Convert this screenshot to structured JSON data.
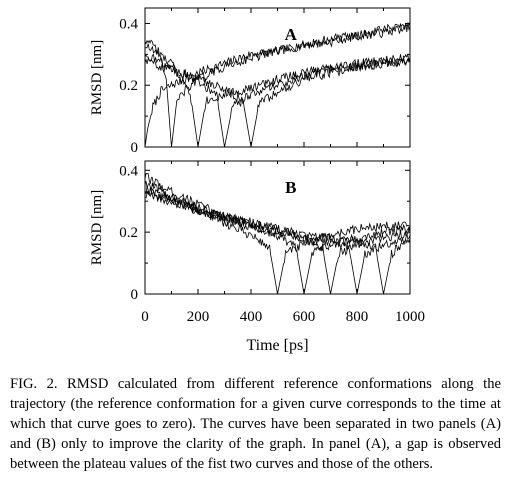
{
  "caption": "FIG. 2. RMSD calculated from different reference conformations along the trajectory (the reference conformation for a given curve corresponds to the time at which that curve goes to zero). The curves have been separated in two panels (A) and (B) only to improve the clarity of the graph. In panel (A), a gap is observed between the plateau values of the fist two curves and those of the others.",
  "chart_data": [
    {
      "type": "line",
      "panel_label": "A",
      "xlabel": "",
      "ylabel": "RMSD [nm]",
      "xlim": [
        0,
        1000
      ],
      "ylim": [
        0,
        0.45
      ],
      "yticks": [
        "0",
        "0.2",
        "0.4"
      ],
      "xticks": [],
      "series": [
        {
          "ref_time": 0,
          "x": [
            0,
            10,
            30,
            60,
            100,
            200,
            300,
            400,
            500,
            600,
            700,
            800,
            900,
            1000
          ],
          "y": [
            0.0,
            0.06,
            0.13,
            0.18,
            0.2,
            0.24,
            0.27,
            0.3,
            0.31,
            0.33,
            0.34,
            0.36,
            0.37,
            0.39
          ]
        },
        {
          "ref_time": 100,
          "x": [
            0,
            50,
            80,
            100,
            120,
            160,
            200,
            300,
            400,
            500,
            600,
            700,
            800,
            900,
            1000
          ],
          "y": [
            0.35,
            0.31,
            0.22,
            0.0,
            0.15,
            0.19,
            0.22,
            0.26,
            0.29,
            0.31,
            0.33,
            0.35,
            0.36,
            0.38,
            0.39
          ]
        },
        {
          "ref_time": 200,
          "x": [
            0,
            100,
            170,
            200,
            230,
            300,
            400,
            500,
            600,
            700,
            800,
            900,
            1000
          ],
          "y": [
            0.33,
            0.27,
            0.18,
            0.0,
            0.15,
            0.17,
            0.19,
            0.22,
            0.24,
            0.26,
            0.27,
            0.28,
            0.29
          ]
        },
        {
          "ref_time": 300,
          "x": [
            0,
            100,
            200,
            270,
            300,
            330,
            400,
            500,
            600,
            700,
            800,
            900,
            1000
          ],
          "y": [
            0.3,
            0.26,
            0.21,
            0.17,
            0.0,
            0.13,
            0.17,
            0.2,
            0.23,
            0.25,
            0.26,
            0.27,
            0.28
          ]
        },
        {
          "ref_time": 400,
          "x": [
            0,
            100,
            200,
            300,
            370,
            400,
            430,
            500,
            600,
            700,
            800,
            900,
            1000
          ],
          "y": [
            0.28,
            0.25,
            0.22,
            0.19,
            0.15,
            0.0,
            0.14,
            0.18,
            0.22,
            0.24,
            0.26,
            0.27,
            0.28
          ]
        }
      ]
    },
    {
      "type": "line",
      "panel_label": "B",
      "xlabel": "Time [ps]",
      "ylabel": "RMSD [nm]",
      "xlim": [
        0,
        1000
      ],
      "ylim": [
        0,
        0.43
      ],
      "yticks": [
        "0",
        "0.2",
        "0.4"
      ],
      "xticks": [
        "0",
        "200",
        "400",
        "600",
        "800",
        "1000"
      ],
      "series": [
        {
          "ref_time": 500,
          "x": [
            0,
            100,
            200,
            300,
            400,
            470,
            500,
            530,
            600,
            700,
            800,
            900,
            1000
          ],
          "y": [
            0.36,
            0.31,
            0.27,
            0.23,
            0.19,
            0.15,
            0.0,
            0.13,
            0.16,
            0.19,
            0.21,
            0.22,
            0.22
          ]
        },
        {
          "ref_time": 600,
          "x": [
            0,
            100,
            200,
            300,
            400,
            500,
            570,
            600,
            630,
            700,
            800,
            900,
            1000
          ],
          "y": [
            0.38,
            0.33,
            0.29,
            0.25,
            0.22,
            0.19,
            0.15,
            0.0,
            0.13,
            0.16,
            0.18,
            0.2,
            0.21
          ]
        },
        {
          "ref_time": 700,
          "x": [
            0,
            100,
            200,
            300,
            400,
            500,
            600,
            670,
            700,
            730,
            800,
            900,
            1000
          ],
          "y": [
            0.34,
            0.31,
            0.28,
            0.25,
            0.23,
            0.21,
            0.18,
            0.15,
            0.0,
            0.13,
            0.16,
            0.18,
            0.2
          ]
        },
        {
          "ref_time": 800,
          "x": [
            0,
            100,
            200,
            300,
            400,
            500,
            600,
            700,
            770,
            800,
            830,
            900,
            1000
          ],
          "y": [
            0.32,
            0.3,
            0.27,
            0.24,
            0.22,
            0.2,
            0.18,
            0.17,
            0.15,
            0.0,
            0.13,
            0.16,
            0.18
          ]
        },
        {
          "ref_time": 900,
          "x": [
            0,
            100,
            200,
            300,
            400,
            500,
            600,
            700,
            800,
            870,
            900,
            930,
            1000
          ],
          "y": [
            0.33,
            0.3,
            0.27,
            0.25,
            0.23,
            0.21,
            0.19,
            0.18,
            0.17,
            0.15,
            0.0,
            0.13,
            0.19
          ]
        }
      ]
    }
  ]
}
